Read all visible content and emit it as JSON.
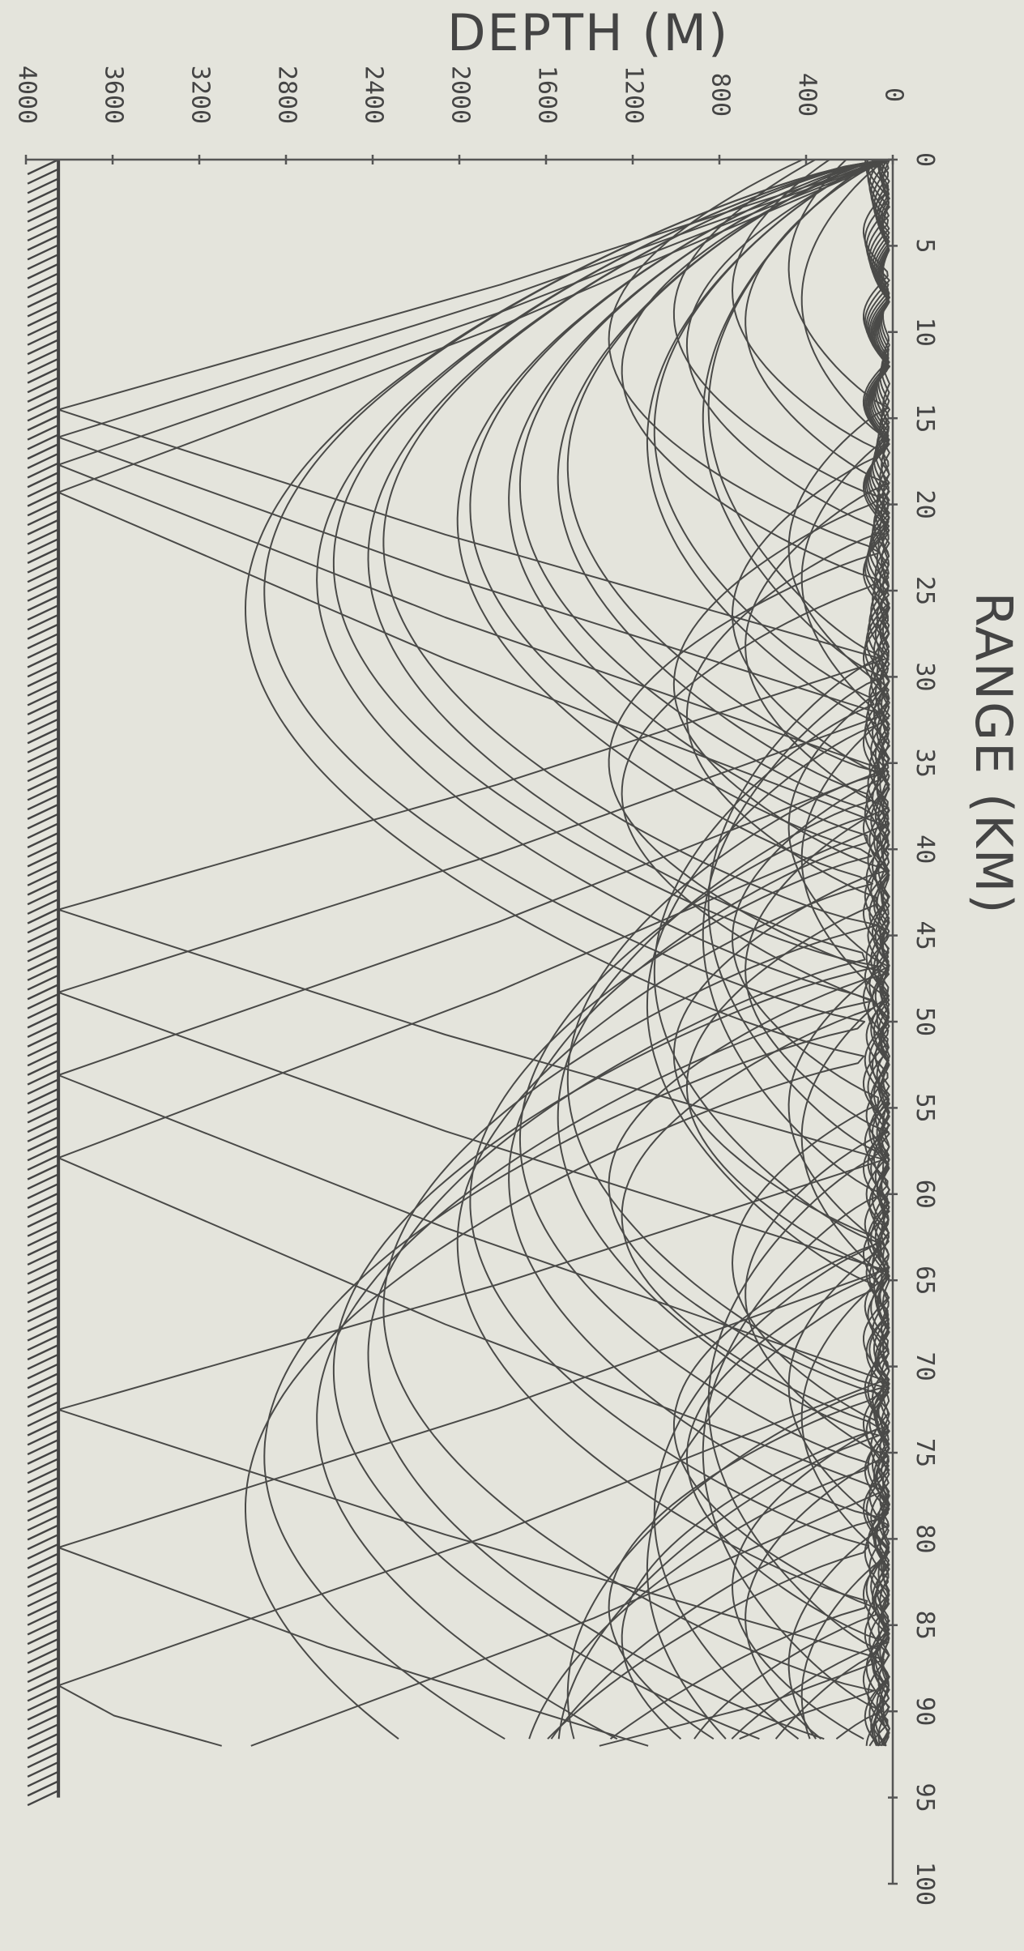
{
  "chart_data": {
    "type": "line",
    "description_units": "range km vs depth m",
    "x_label": "RANGE (KM)",
    "y_label": "DEPTH (M)",
    "x_ticks": [
      0,
      5,
      10,
      15,
      20,
      25,
      30,
      35,
      40,
      45,
      50,
      55,
      60,
      65,
      70,
      75,
      80,
      85,
      90,
      95,
      100
    ],
    "y_ticks": [
      0,
      400,
      800,
      1200,
      1600,
      2000,
      2400,
      2800,
      3200,
      3600,
      4000
    ],
    "xlim": [
      0,
      100
    ],
    "ylim": [
      0,
      4000
    ],
    "bottom_depth": 3850,
    "rays_end_range": 92,
    "surface_duct": {
      "max_depth": 120,
      "count": 14
    },
    "refracted_turning_depths": [
      850,
      1100,
      1500,
      1720,
      1950,
      2350,
      2580,
      2900
    ],
    "upper_refracted": {
      "turning_depths": [
        420,
        680,
        950,
        1250
      ],
      "count": 4
    },
    "bottom_bounce": {
      "launch_depths": [
        3640,
        3700,
        3760,
        3820
      ],
      "count": 4,
      "bottom_depth": 3850
    },
    "axis_orientation": "rotated 90 degrees: depth increases to the left, range increases downward"
  }
}
